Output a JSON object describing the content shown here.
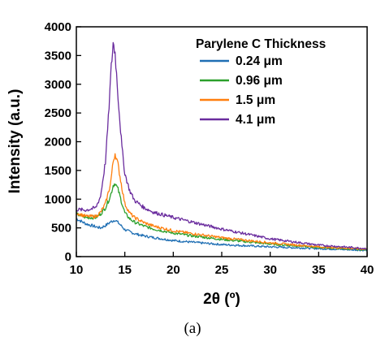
{
  "caption": "(a)",
  "chart_data": {
    "type": "line",
    "xlabel": "2θ (º)",
    "ylabel": "Intensity (a.u.)",
    "xlim": [
      10,
      40
    ],
    "ylim": [
      0,
      4000
    ],
    "x_ticks": [
      "10",
      "15",
      "20",
      "25",
      "30",
      "35",
      "40"
    ],
    "y_ticks": [
      "0",
      "500",
      "1000",
      "1500",
      "2000",
      "2500",
      "3000",
      "3500",
      "4000"
    ],
    "grid": false,
    "legend_title": "Parylene C Thickness",
    "legend_position": "top-right",
    "series": [
      {
        "name": "0.24 μm",
        "color": "#1f6fb4",
        "x": [
          10,
          11,
          12,
          12.5,
          13,
          13.5,
          14,
          14.5,
          15,
          16,
          17,
          18,
          20,
          22,
          25,
          30,
          35,
          40
        ],
        "y": [
          660,
          570,
          520,
          500,
          540,
          600,
          640,
          560,
          470,
          400,
          360,
          330,
          280,
          250,
          210,
          170,
          140,
          110
        ]
      },
      {
        "name": "0.96 μm",
        "color": "#2ca02c",
        "x": [
          10,
          11,
          12,
          12.5,
          13,
          13.5,
          13.8,
          14,
          14.3,
          14.7,
          15,
          15.5,
          16,
          17,
          18,
          20,
          22,
          25,
          30,
          35,
          40
        ],
        "y": [
          740,
          680,
          680,
          740,
          850,
          1050,
          1240,
          1280,
          1170,
          930,
          760,
          660,
          600,
          530,
          480,
          410,
          360,
          300,
          220,
          160,
          120
        ]
      },
      {
        "name": "1.5 μm",
        "color": "#ff7f0e",
        "x": [
          10,
          11,
          12,
          12.5,
          13,
          13.5,
          13.8,
          14,
          14.3,
          14.7,
          15,
          15.5,
          16,
          17,
          18,
          20,
          22,
          25,
          30,
          35,
          40
        ],
        "y": [
          760,
          700,
          700,
          770,
          920,
          1250,
          1650,
          1800,
          1600,
          1200,
          920,
          760,
          680,
          590,
          530,
          450,
          400,
          330,
          240,
          170,
          130
        ]
      },
      {
        "name": "4.1 μm",
        "color": "#6a2c9e",
        "x": [
          10,
          11,
          12,
          12.5,
          13,
          13.3,
          13.6,
          13.8,
          14,
          14.3,
          14.7,
          15,
          15.5,
          16,
          17,
          18,
          20,
          22,
          25,
          30,
          35,
          40
        ],
        "y": [
          820,
          810,
          850,
          1050,
          1650,
          2400,
          3300,
          3720,
          3550,
          2800,
          1900,
          1450,
          1150,
          980,
          850,
          770,
          680,
          600,
          480,
          310,
          200,
          140
        ]
      }
    ]
  }
}
